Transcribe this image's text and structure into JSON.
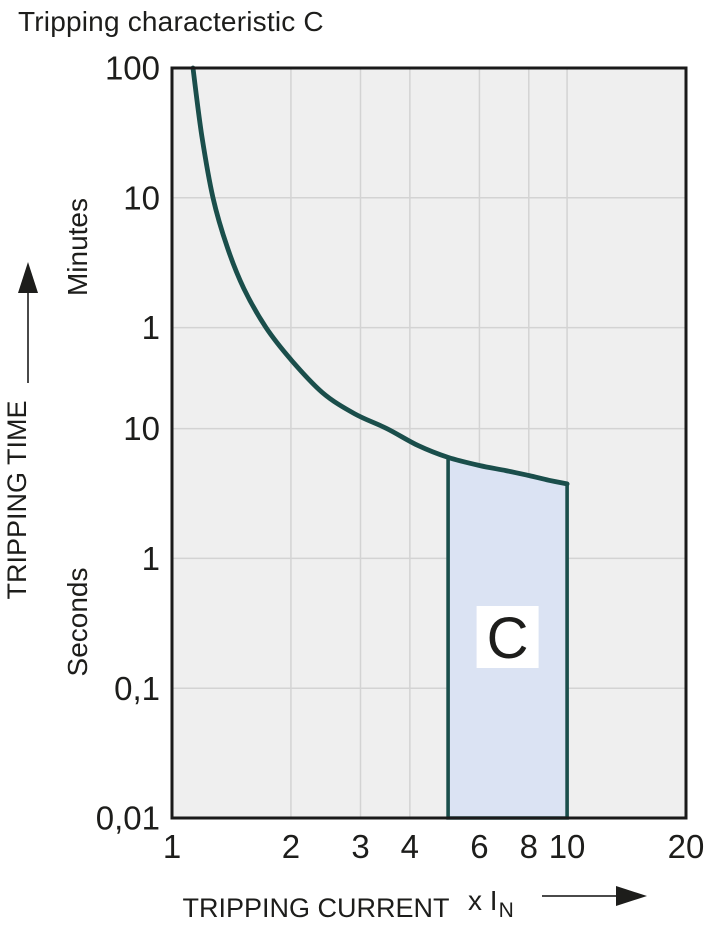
{
  "title": "Tripping characteristic C",
  "colors": {
    "page_background": "#ffffff",
    "plot_background": "#efefef",
    "grid": "#d3d3d3",
    "plot_border": "#1a1a1a",
    "curve": "#1a4e4b",
    "region_fill": "#dbe3f3",
    "region_border": "#1a4e4b",
    "region_label_background": "#ffffff",
    "text": "#1d1d1b",
    "arrow": "#1d1d1b",
    "arrow_shaft": "#4a4a4a"
  },
  "chart_data": {
    "type": "line",
    "title": "Tripping characteristic C",
    "grid": true,
    "legend": false,
    "x_axis": {
      "label": "TRIPPING CURRENT",
      "unit_prefix": "x I",
      "unit_sub": "N",
      "scale": "log",
      "range": [
        1,
        20
      ],
      "ticks": [
        {
          "label": "1",
          "value": 1
        },
        {
          "label": "2",
          "value": 2
        },
        {
          "label": "3",
          "value": 3
        },
        {
          "label": "4",
          "value": 4
        },
        {
          "label": "6",
          "value": 6
        },
        {
          "label": "8",
          "value": 8
        },
        {
          "label": "10",
          "value": 10
        },
        {
          "label": "20",
          "value": 20
        }
      ]
    },
    "y_axis": {
      "label": "TRIPPING TIME",
      "scale": "log",
      "range_seconds": [
        0.01,
        6000
      ],
      "groups": [
        {
          "name": "Minutes",
          "ticks": [
            {
              "label": "100",
              "seconds": 6000
            },
            {
              "label": "10",
              "seconds": 600
            },
            {
              "label": "1",
              "seconds": 60
            }
          ]
        },
        {
          "name": "Seconds",
          "ticks": [
            {
              "label": "10",
              "seconds": 10
            },
            {
              "label": "1",
              "seconds": 1
            },
            {
              "label": "0,1",
              "seconds": 0.1
            },
            {
              "label": "0,01",
              "seconds": 0.01
            }
          ]
        }
      ]
    },
    "series": [
      {
        "name": "tripping-curve",
        "points_multiple_vs_seconds": [
          [
            1.13,
            6000
          ],
          [
            1.19,
            1800
          ],
          [
            1.27,
            600
          ],
          [
            1.38,
            250
          ],
          [
            1.52,
            120
          ],
          [
            1.73,
            60
          ],
          [
            2.0,
            34
          ],
          [
            2.4,
            19
          ],
          [
            2.9,
            13
          ],
          [
            3.5,
            10
          ],
          [
            4.2,
            7.4
          ],
          [
            5.0,
            6.0
          ],
          [
            6.0,
            5.2
          ],
          [
            7.0,
            4.75
          ],
          [
            8.0,
            4.35
          ],
          [
            9.0,
            4.0
          ],
          [
            10.0,
            3.75
          ]
        ]
      }
    ],
    "region": {
      "label": "C",
      "x_from": 5,
      "x_to": 10,
      "top_follows_curve": true
    }
  }
}
